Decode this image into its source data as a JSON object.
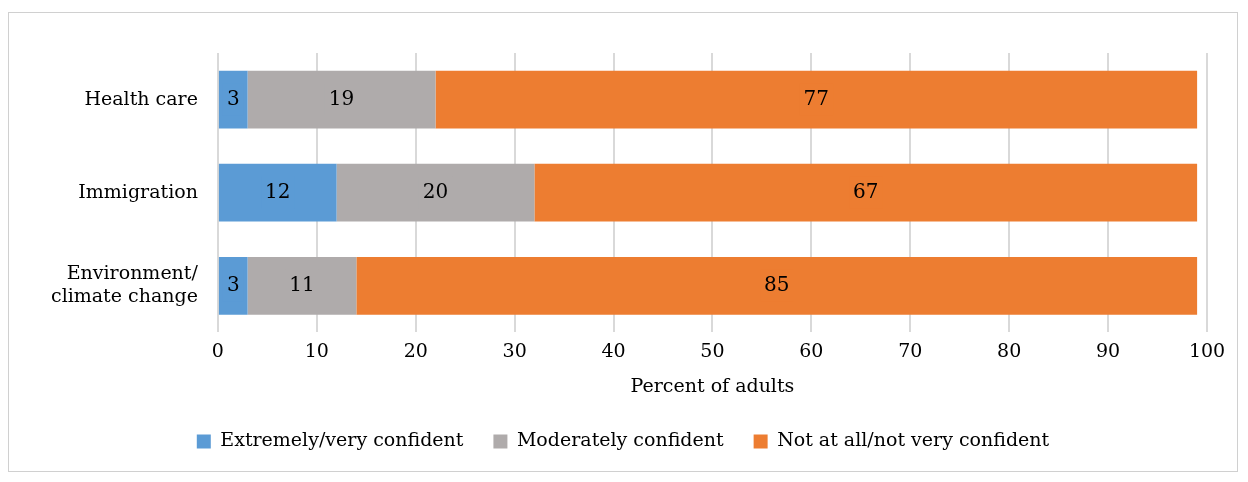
{
  "chart_data": {
    "type": "bar",
    "orientation": "horizontal",
    "stacked": true,
    "categories": [
      "Health care",
      "Immigration",
      "Environment/\nclimate change"
    ],
    "series": [
      {
        "name": "Extremely/very confident",
        "color": "#5b9bd5",
        "values": [
          3,
          12,
          3
        ]
      },
      {
        "name": "Moderately confident",
        "color": "#afabab",
        "values": [
          19,
          20,
          11
        ]
      },
      {
        "name": "Not at all/not very confident",
        "color": "#ed7d31",
        "values": [
          77,
          67,
          85
        ]
      }
    ],
    "xlabel": "Percent of adults",
    "xlim": [
      0,
      100
    ],
    "xticks": [
      0,
      10,
      20,
      30,
      40,
      50,
      60,
      70,
      80,
      90,
      100
    ],
    "grid": "x",
    "legend": "bottom",
    "data_labels": true
  }
}
